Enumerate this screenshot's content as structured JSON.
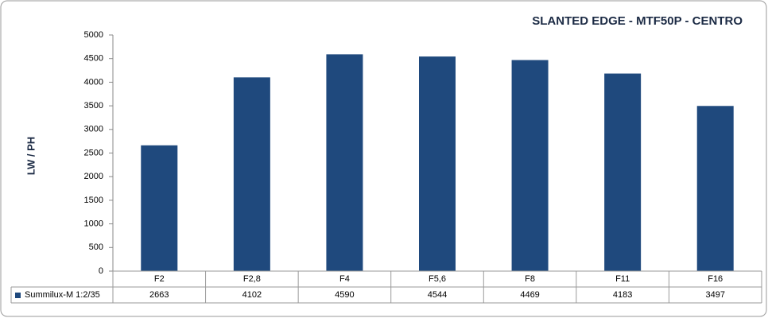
{
  "chart_data": {
    "type": "bar",
    "title": "SLANTED EDGE - MTF50P - CENTRO",
    "y_label": "LW / PH",
    "categories": [
      "F2",
      "F2,8",
      "F4",
      "F5,6",
      "F8",
      "F11",
      "F16"
    ],
    "series": [
      {
        "name": "Summilux-M 1:2/35",
        "color": "#1f497d",
        "values": [
          2663,
          4102,
          4590,
          4544,
          4469,
          4183,
          3497
        ]
      }
    ],
    "ylim": [
      0,
      5000
    ],
    "yticks": [
      0,
      500,
      1000,
      1500,
      2000,
      2500,
      3000,
      3500,
      4000,
      4500,
      5000
    ],
    "grid": false,
    "data_table": true
  }
}
